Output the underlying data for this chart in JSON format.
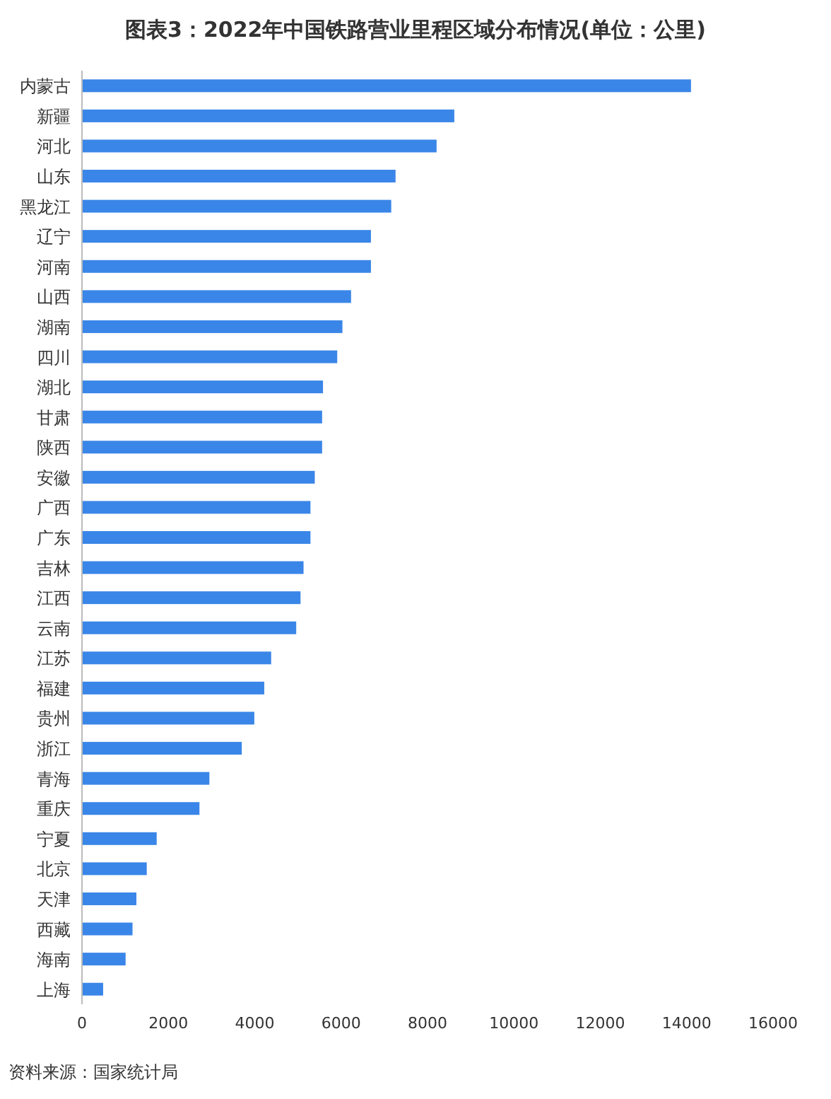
{
  "chart_data": {
    "type": "bar",
    "orientation": "horizontal",
    "title": "图表3：2022年中国铁路营业里程区域分布情况(单位：公里)",
    "categories": [
      "内蒙古",
      "新疆",
      "河北",
      "山东",
      "黑龙江",
      "辽宁",
      "河南",
      "山西",
      "湖南",
      "四川",
      "湖北",
      "甘肃",
      "陕西",
      "安徽",
      "广西",
      "广东",
      "吉林",
      "江西",
      "云南",
      "江苏",
      "福建",
      "贵州",
      "浙江",
      "青海",
      "重庆",
      "宁夏",
      "北京",
      "天津",
      "西藏",
      "海南",
      "上海"
    ],
    "values": [
      14100,
      8620,
      8210,
      7260,
      7160,
      6690,
      6690,
      6230,
      6030,
      5910,
      5580,
      5560,
      5560,
      5390,
      5290,
      5290,
      5130,
      5060,
      4960,
      4380,
      4220,
      3990,
      3700,
      2950,
      2720,
      1730,
      1500,
      1260,
      1170,
      1010,
      490
    ],
    "color": "#3a86e8",
    "xlim": [
      0,
      16000
    ],
    "xticks": [
      0,
      2000,
      4000,
      6000,
      8000,
      10000,
      12000,
      14000,
      16000
    ],
    "grid": false,
    "annotations": [
      "资料来源：国家统计局"
    ]
  }
}
